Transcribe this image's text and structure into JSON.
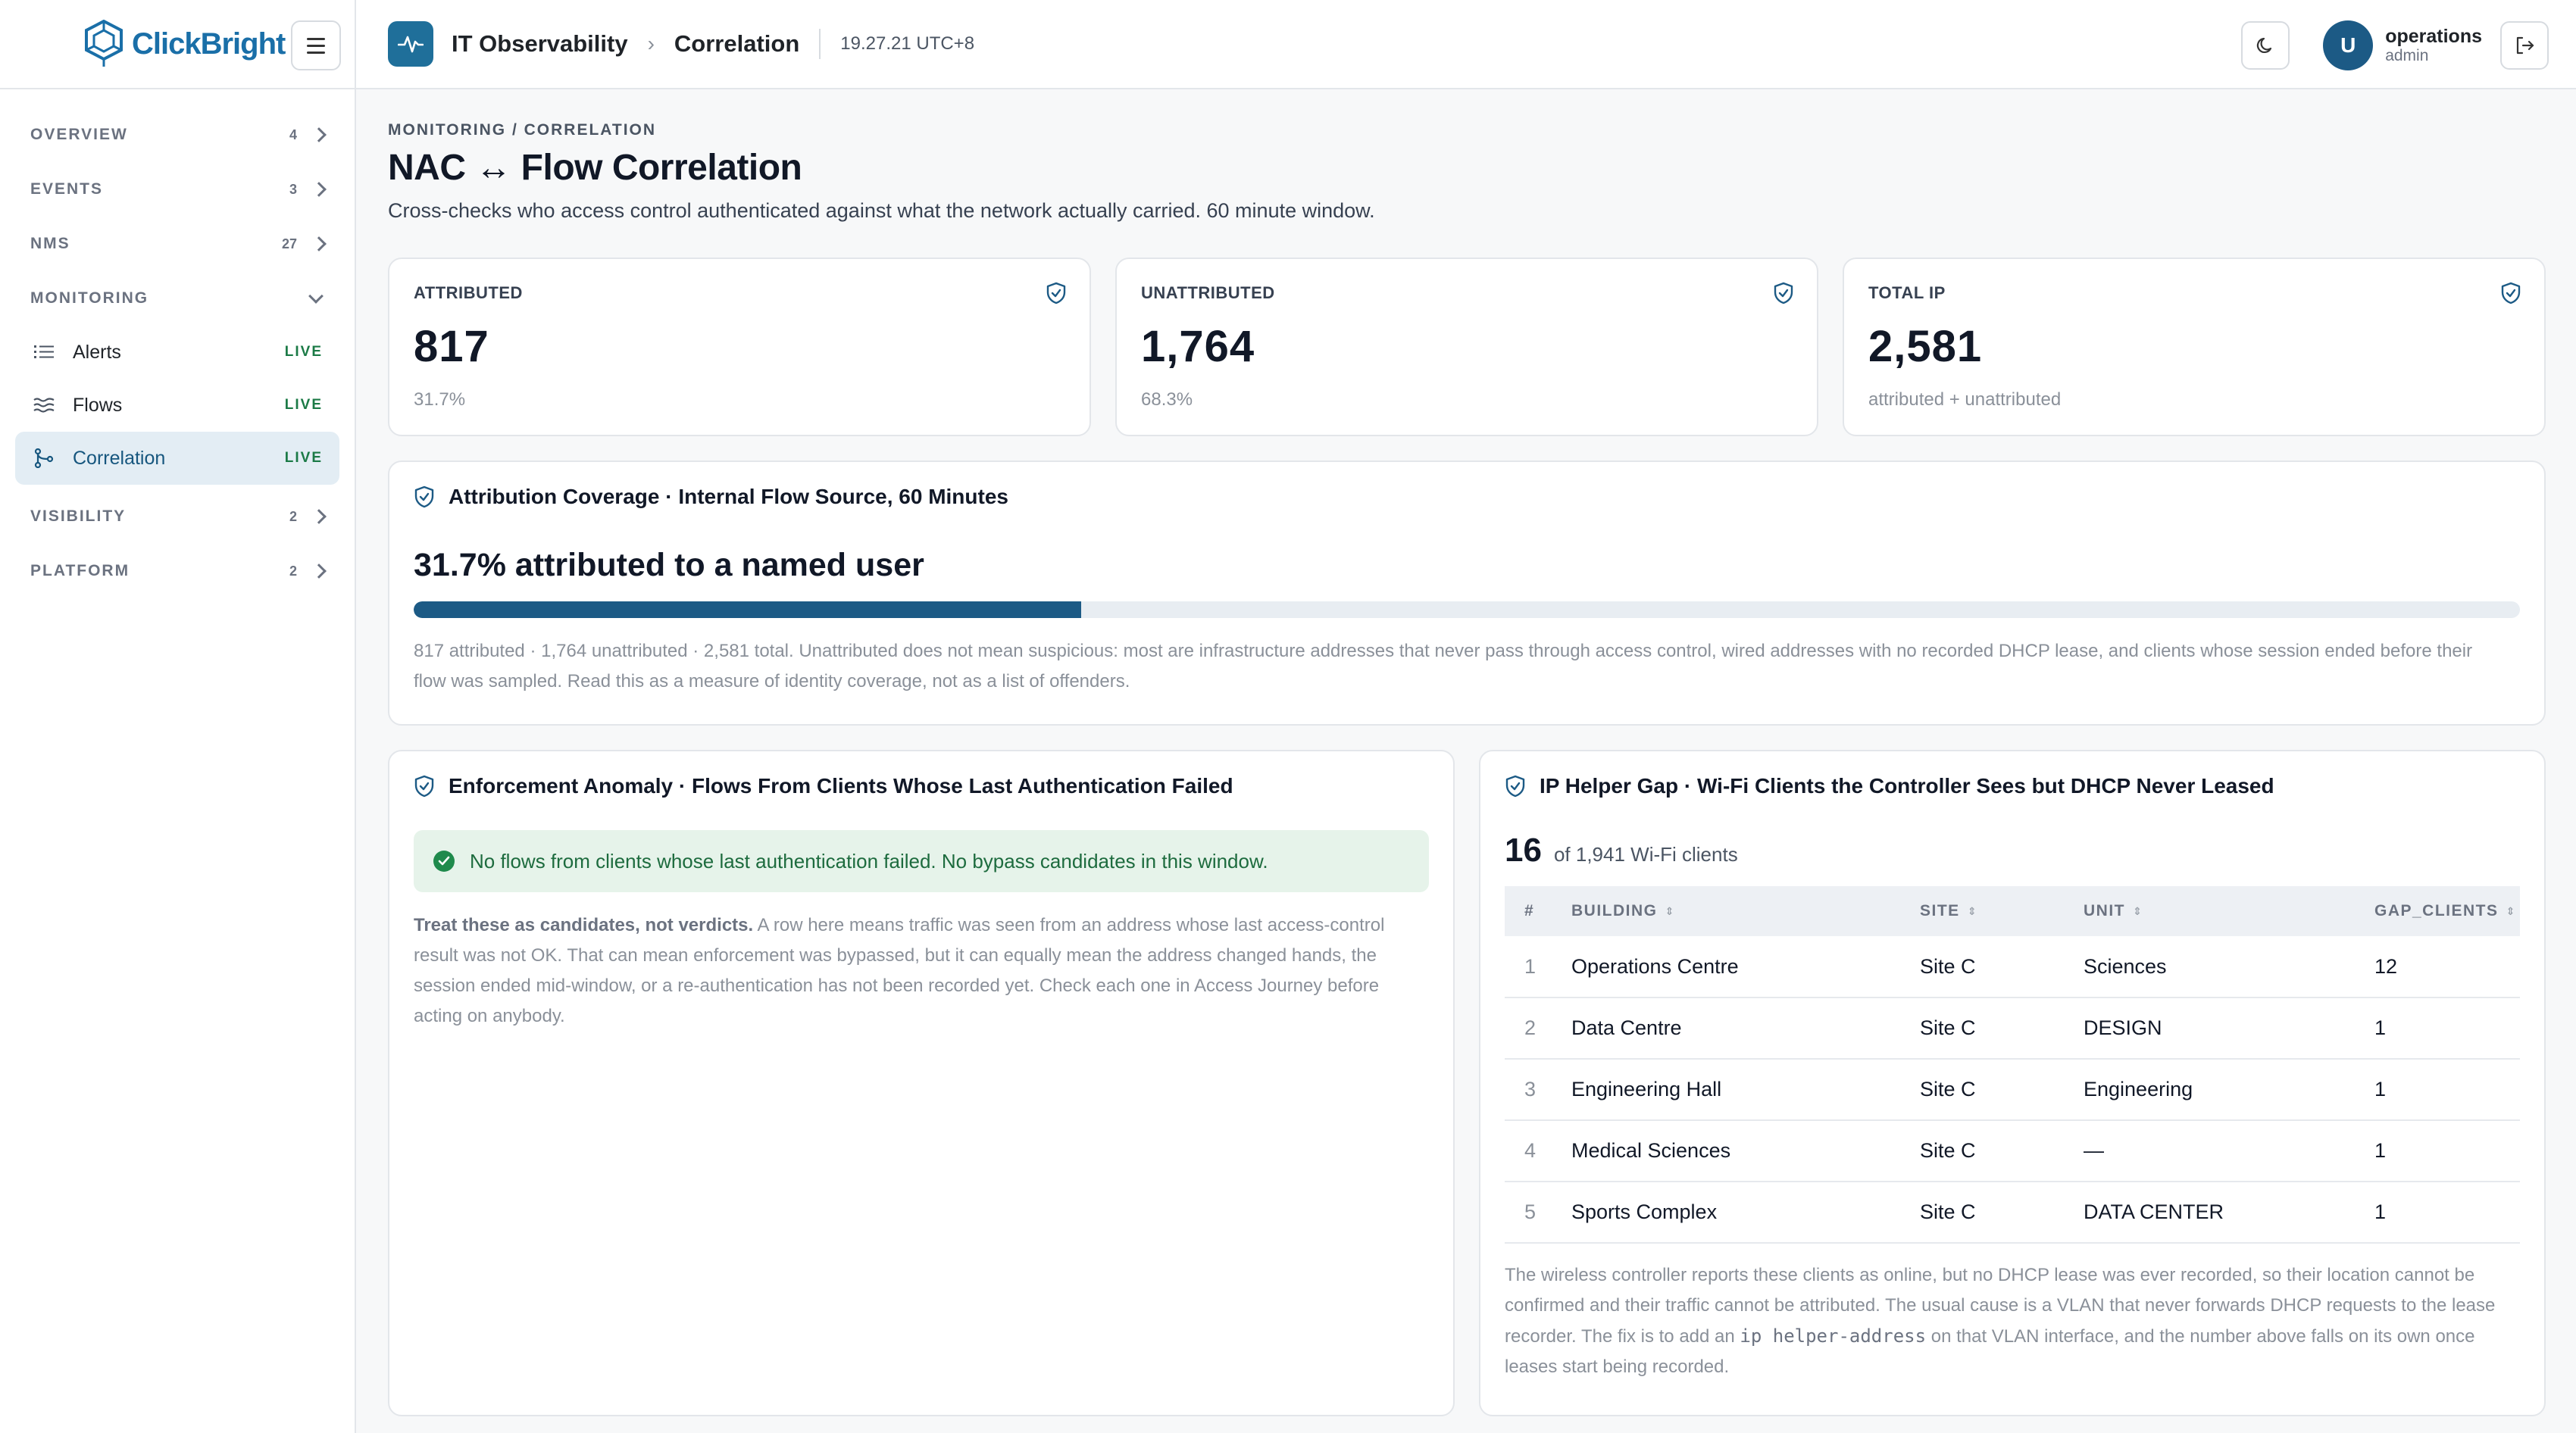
{
  "brand": {
    "name": "ClickBright"
  },
  "sidebar": {
    "groups_top": [
      {
        "label": "OVERVIEW",
        "count": "4"
      },
      {
        "label": "EVENTS",
        "count": "3"
      },
      {
        "label": "NMS",
        "count": "27"
      }
    ],
    "monitoring": {
      "label": "MONITORING",
      "items": [
        {
          "label": "Alerts",
          "badge": "LIVE"
        },
        {
          "label": "Flows",
          "badge": "LIVE"
        },
        {
          "label": "Correlation",
          "badge": "LIVE"
        }
      ]
    },
    "groups_bottom": [
      {
        "label": "VISIBILITY",
        "count": "2"
      },
      {
        "label": "PLATFORM",
        "count": "2"
      }
    ]
  },
  "topbar": {
    "app": "IT Observability",
    "separator": "›",
    "page": "Correlation",
    "time": "19.27.21 UTC+8",
    "user": {
      "initial": "U",
      "name": "operations",
      "role": "admin"
    }
  },
  "page": {
    "breadcrumb": "MONITORING / CORRELATION",
    "title": "NAC ↔ Flow Correlation",
    "subtitle": "Cross-checks who access control authenticated against what the network actually carried. 60 minute window."
  },
  "stats": [
    {
      "label": "ATTRIBUTED",
      "value": "817",
      "sub": "31.7%"
    },
    {
      "label": "UNATTRIBUTED",
      "value": "1,764",
      "sub": "68.3%"
    },
    {
      "label": "TOTAL IP",
      "value": "2,581",
      "sub": "attributed + unattributed"
    }
  ],
  "coverage": {
    "title": "Attribution Coverage · Internal Flow Source, 60 Minutes",
    "headline": "31.7% attributed to a named user",
    "fraction": 0.317,
    "note": "817 attributed · 1,764 unattributed · 2,581 total. Unattributed does not mean suspicious: most are infrastructure addresses that never pass through access control, wired addresses with no recorded DHCP lease, and clients whose session ended before their flow was sampled. Read this as a measure of identity coverage, not as a list of offenders."
  },
  "enforcement": {
    "title": "Enforcement Anomaly · Flows From Clients Whose Last Authentication Failed",
    "ok_message": "No flows from clients whose last authentication failed. No bypass candidates in this window.",
    "note_bold": "Treat these as candidates, not verdicts.",
    "note": " A row here means traffic was seen from an address whose last access-control result was not OK. That can mean enforcement was bypassed, but it can equally mean the address changed hands, the session ended mid-window, or a re-authentication has not been recorded yet. Check each one in Access Journey before acting on anybody."
  },
  "iphelper": {
    "title": "IP Helper Gap · Wi-Fi Clients the Controller Sees but DHCP Never Leased",
    "count": "16",
    "of_text": "of 1,941 Wi-Fi clients",
    "columns": [
      "#",
      "BUILDING",
      "SITE",
      "UNIT",
      "GAP_CLIENTS"
    ],
    "rows": [
      {
        "idx": "1",
        "building": "Operations Centre",
        "site": "Site C",
        "unit": "Sciences",
        "gap": "12"
      },
      {
        "idx": "2",
        "building": "Data Centre",
        "site": "Site C",
        "unit": "DESIGN",
        "gap": "1"
      },
      {
        "idx": "3",
        "building": "Engineering Hall",
        "site": "Site C",
        "unit": "Engineering",
        "gap": "1"
      },
      {
        "idx": "4",
        "building": "Medical Sciences",
        "site": "Site C",
        "unit": "—",
        "gap": "1"
      },
      {
        "idx": "5",
        "building": "Sports Complex",
        "site": "Site C",
        "unit": "DATA CENTER",
        "gap": "1"
      }
    ],
    "note_pre": "The wireless controller reports these clients as online, but no DHCP lease was ever recorded, so their location cannot be confirmed and their traffic cannot be attributed. The usual cause is a VLAN that never forwards DHCP requests to the lease recorder. The fix is to add an ",
    "note_code": "ip helper-address",
    "note_post": " on that VLAN interface, and the number above falls on its own once leases start being recorded."
  },
  "colors": {
    "brand": "#1a6fa8",
    "accent": "#1c5a85",
    "live": "#1b7a46",
    "ok_bg": "#e6f3ea"
  }
}
